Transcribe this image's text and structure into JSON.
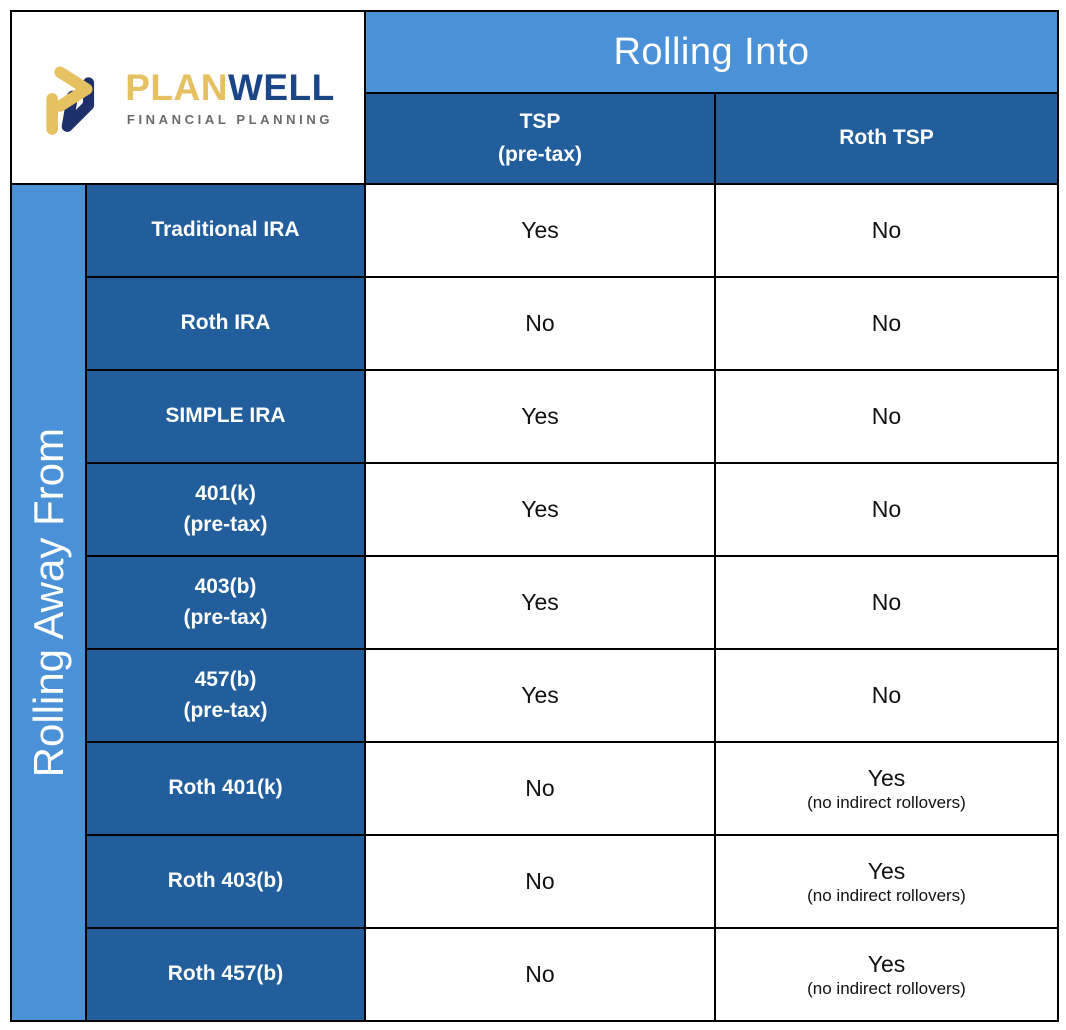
{
  "brand": {
    "name_primary": "PLAN",
    "name_secondary": "WELL",
    "tagline": "FINANCIAL PLANNING",
    "icon": "planwell-arrow-monogram",
    "colors": {
      "gold": "#e5c162",
      "navy_text": "#1a4586",
      "icon_navy": "#1d3069",
      "tagline_gray": "#6b6b6b"
    }
  },
  "table": {
    "col_group_header": "Rolling Into",
    "row_group_header": "Rolling Away From",
    "columns": [
      {
        "label": "TSP",
        "sub": "(pre-tax)"
      },
      {
        "label": "Roth TSP",
        "sub": ""
      }
    ],
    "rows": [
      {
        "label": "Traditional IRA",
        "sub": "",
        "tsp": "Yes",
        "tsp_note": "",
        "roth_tsp": "No",
        "roth_tsp_note": ""
      },
      {
        "label": "Roth IRA",
        "sub": "",
        "tsp": "No",
        "tsp_note": "",
        "roth_tsp": "No",
        "roth_tsp_note": ""
      },
      {
        "label": "SIMPLE IRA",
        "sub": "",
        "tsp": "Yes",
        "tsp_note": "",
        "roth_tsp": "No",
        "roth_tsp_note": ""
      },
      {
        "label": "401(k)",
        "sub": "(pre-tax)",
        "tsp": "Yes",
        "tsp_note": "",
        "roth_tsp": "No",
        "roth_tsp_note": ""
      },
      {
        "label": "403(b)",
        "sub": "(pre-tax)",
        "tsp": "Yes",
        "tsp_note": "",
        "roth_tsp": "No",
        "roth_tsp_note": ""
      },
      {
        "label": "457(b)",
        "sub": "(pre-tax)",
        "tsp": "Yes",
        "tsp_note": "",
        "roth_tsp": "No",
        "roth_tsp_note": ""
      },
      {
        "label": "Roth 401(k)",
        "sub": "",
        "tsp": "No",
        "tsp_note": "",
        "roth_tsp": "Yes",
        "roth_tsp_note": "(no indirect rollovers)"
      },
      {
        "label": "Roth 403(b)",
        "sub": "",
        "tsp": "No",
        "tsp_note": "",
        "roth_tsp": "Yes",
        "roth_tsp_note": "(no indirect rollovers)"
      },
      {
        "label": "Roth 457(b)",
        "sub": "",
        "tsp": "No",
        "tsp_note": "",
        "roth_tsp": "Yes",
        "roth_tsp_note": "(no indirect rollovers)"
      }
    ],
    "colors": {
      "light_blue": "#4a91d8",
      "dark_blue": "#215e9b",
      "border": "#000000",
      "cell_text": "#111111",
      "header_text": "#ffffff"
    }
  }
}
